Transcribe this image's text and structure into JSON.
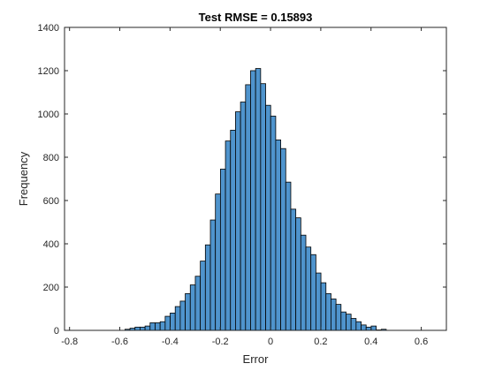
{
  "chart_data": {
    "type": "bar",
    "subtype": "histogram",
    "title": "Test RMSE = 0.15893",
    "xlabel": "Error",
    "ylabel": "Frequency",
    "xlim": [
      -0.82,
      0.7
    ],
    "ylim": [
      0,
      1400
    ],
    "xticks": [
      -0.8,
      -0.6,
      -0.4,
      -0.2,
      0,
      0.2,
      0.4,
      0.6
    ],
    "xtick_labels": [
      "-0.8",
      "-0.6",
      "-0.4",
      "-0.2",
      "0",
      "0.2",
      "0.4",
      "0.6"
    ],
    "yticks": [
      0,
      200,
      400,
      600,
      800,
      1000,
      1200,
      1400
    ],
    "ytick_labels": [
      "0",
      "200",
      "400",
      "600",
      "800",
      "1000",
      "1200",
      "1400"
    ],
    "grid": false,
    "colors": {
      "bar_fill": "#4F94CD",
      "bar_edge": "#000000",
      "axis": "#262626",
      "background": "#ffffff"
    },
    "bin_edges": [
      -0.5794,
      -0.5594,
      -0.5394,
      -0.5194,
      -0.4994,
      -0.4794,
      -0.4594,
      -0.4394,
      -0.4194,
      -0.3994,
      -0.3794,
      -0.3594,
      -0.3394,
      -0.3194,
      -0.2994,
      -0.2794,
      -0.2594,
      -0.2394,
      -0.2194,
      -0.1994,
      -0.1794,
      -0.1594,
      -0.1394,
      -0.1194,
      -0.0994,
      -0.0794,
      -0.0594,
      -0.0394,
      -0.0194,
      0.0006,
      0.0206,
      0.0406,
      0.0606,
      0.0806,
      0.1006,
      0.1206,
      0.1406,
      0.1606,
      0.1806,
      0.2006,
      0.2206,
      0.2406,
      0.2606,
      0.2806,
      0.3006,
      0.3206,
      0.3406,
      0.3606,
      0.3806,
      0.4006,
      0.4206,
      0.4406,
      0.4606
    ],
    "counts": [
      5,
      10,
      15,
      15,
      20,
      35,
      35,
      40,
      65,
      80,
      110,
      135,
      170,
      210,
      250,
      320,
      395,
      510,
      630,
      745,
      875,
      925,
      1010,
      1055,
      1135,
      1200,
      1210,
      1140,
      1040,
      990,
      880,
      840,
      685,
      560,
      520,
      440,
      385,
      350,
      265,
      220,
      170,
      145,
      120,
      85,
      75,
      55,
      40,
      25,
      15,
      20,
      2,
      5
    ]
  }
}
